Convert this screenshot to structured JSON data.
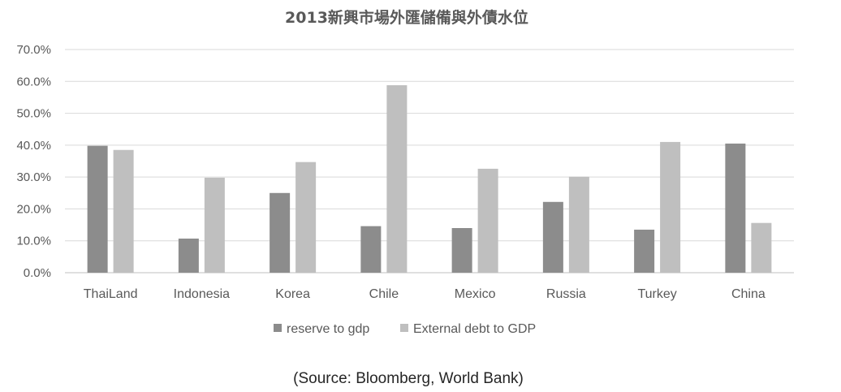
{
  "chart_data": {
    "type": "bar",
    "title": "2013新興市場外匯儲備與外債水位",
    "categories": [
      "ThaiLand",
      "Indonesia",
      "Korea",
      "Chile",
      "Mexico",
      "Russia",
      "Turkey",
      "China"
    ],
    "series": [
      {
        "name": "reserve to gdp",
        "color": "#8c8c8c",
        "values": [
          39.8,
          10.7,
          25.0,
          14.6,
          14.0,
          22.2,
          13.5,
          40.5
        ]
      },
      {
        "name": "External debt to GDP",
        "color": "#bfbfbf",
        "values": [
          38.5,
          29.8,
          34.7,
          58.8,
          32.6,
          30.1,
          41.0,
          15.6
        ]
      }
    ],
    "yticks": [
      "0.0%",
      "10.0%",
      "20.0%",
      "30.0%",
      "40.0%",
      "50.0%",
      "60.0%",
      "70.0%"
    ],
    "ylim": [
      0,
      70
    ],
    "grid": true,
    "legend_position": "bottom"
  },
  "source_note": "(Source: Bloomberg, World Bank)"
}
